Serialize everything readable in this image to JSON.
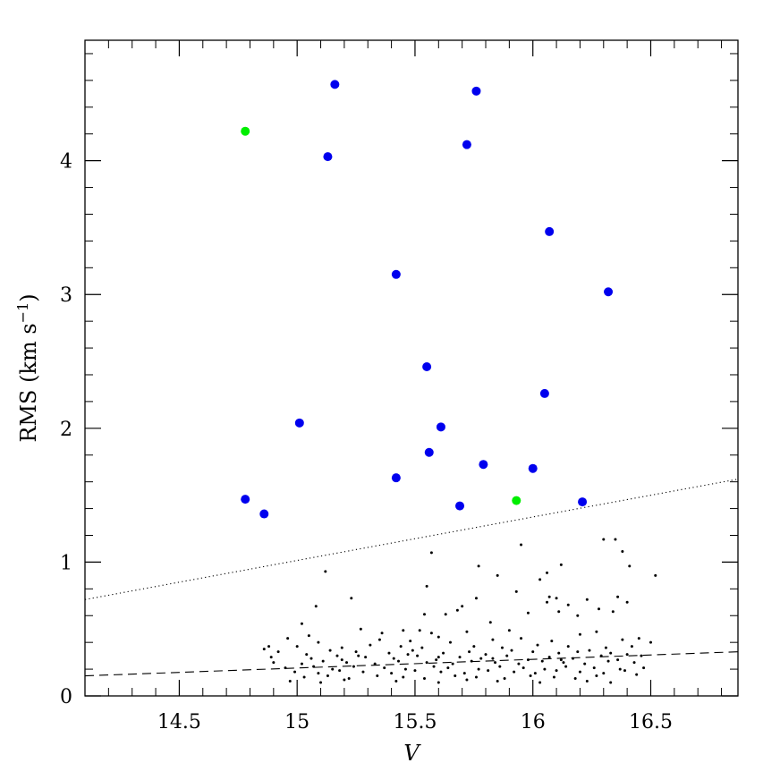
{
  "chart_data": {
    "type": "scatter",
    "xlabel": "V",
    "ylabel": "RMS (km s",
    "ylabel_sup": "−1",
    "ylabel_close": ")",
    "xlim": [
      14.1,
      16.87
    ],
    "ylim": [
      0,
      4.9
    ],
    "x_major_ticks": [
      14.5,
      15,
      15.5,
      16,
      16.5
    ],
    "x_tick_labels": [
      "14.5",
      "15",
      "15.5",
      "16",
      "16.5"
    ],
    "x_minor_step": 0.1,
    "y_major_ticks": [
      0,
      1,
      2,
      3,
      4
    ],
    "y_tick_labels": [
      "0",
      "1",
      "2",
      "3",
      "4"
    ],
    "y_minor_step": 0.2,
    "grid": false,
    "colors": {
      "blue": "#0000ee",
      "green": "#00ee00",
      "black": "#000000"
    },
    "series": [
      {
        "marker": "large-dot",
        "color": "#0000ee",
        "points": [
          [
            15.16,
            4.57
          ],
          [
            15.76,
            4.52
          ],
          [
            15.72,
            4.12
          ],
          [
            15.13,
            4.03
          ],
          [
            16.07,
            3.47
          ],
          [
            15.42,
            3.15
          ],
          [
            16.32,
            3.02
          ],
          [
            15.55,
            2.46
          ],
          [
            16.05,
            2.26
          ],
          [
            15.01,
            2.04
          ],
          [
            15.61,
            2.01
          ],
          [
            15.56,
            1.82
          ],
          [
            15.79,
            1.73
          ],
          [
            16.0,
            1.7
          ],
          [
            15.42,
            1.63
          ],
          [
            14.78,
            1.47
          ],
          [
            16.21,
            1.45
          ],
          [
            15.69,
            1.42
          ],
          [
            14.86,
            1.36
          ]
        ]
      },
      {
        "marker": "large-dot",
        "color": "#00ee00",
        "points": [
          [
            14.78,
            4.22
          ],
          [
            15.93,
            1.46
          ]
        ]
      },
      {
        "marker": "small-dot",
        "color": "#000000",
        "points": [
          [
            15.12,
            0.93
          ],
          [
            15.57,
            1.07
          ],
          [
            15.95,
            1.13
          ],
          [
            16.3,
            1.17
          ],
          [
            16.35,
            1.17
          ],
          [
            16.38,
            1.08
          ],
          [
            16.12,
            0.98
          ],
          [
            15.77,
            0.97
          ],
          [
            16.41,
            0.97
          ],
          [
            16.06,
            0.92
          ],
          [
            15.85,
            0.9
          ],
          [
            16.52,
            0.9
          ],
          [
            16.03,
            0.87
          ],
          [
            15.55,
            0.82
          ],
          [
            15.93,
            0.78
          ],
          [
            16.07,
            0.74
          ],
          [
            16.36,
            0.74
          ],
          [
            15.23,
            0.73
          ],
          [
            15.76,
            0.73
          ],
          [
            16.1,
            0.73
          ],
          [
            16.23,
            0.72
          ],
          [
            16.4,
            0.7
          ],
          [
            15.7,
            0.67
          ],
          [
            16.06,
            0.7
          ],
          [
            16.15,
            0.68
          ],
          [
            16.28,
            0.65
          ],
          [
            15.08,
            0.67
          ],
          [
            15.68,
            0.64
          ],
          [
            15.98,
            0.62
          ],
          [
            16.19,
            0.6
          ],
          [
            15.54,
            0.61
          ],
          [
            15.63,
            0.61
          ],
          [
            15.82,
            0.55
          ],
          [
            16.11,
            0.63
          ],
          [
            16.34,
            0.63
          ],
          [
            15.02,
            0.54
          ],
          [
            15.45,
            0.49
          ],
          [
            15.27,
            0.5
          ],
          [
            15.52,
            0.49
          ],
          [
            15.9,
            0.49
          ],
          [
            16.27,
            0.48
          ],
          [
            15.72,
            0.48
          ],
          [
            15.36,
            0.47
          ],
          [
            15.57,
            0.47
          ],
          [
            16.2,
            0.46
          ],
          [
            14.96,
            0.43
          ],
          [
            15.05,
            0.45
          ],
          [
            15.6,
            0.44
          ],
          [
            15.95,
            0.43
          ],
          [
            16.45,
            0.43
          ],
          [
            14.88,
            0.37
          ],
          [
            15.09,
            0.4
          ],
          [
            15.35,
            0.42
          ],
          [
            15.48,
            0.41
          ],
          [
            15.65,
            0.4
          ],
          [
            15.83,
            0.42
          ],
          [
            16.08,
            0.41
          ],
          [
            16.38,
            0.42
          ],
          [
            14.86,
            0.35
          ],
          [
            15.0,
            0.37
          ],
          [
            15.19,
            0.36
          ],
          [
            15.31,
            0.38
          ],
          [
            15.44,
            0.37
          ],
          [
            15.53,
            0.36
          ],
          [
            15.75,
            0.37
          ],
          [
            15.87,
            0.36
          ],
          [
            16.02,
            0.38
          ],
          [
            16.15,
            0.37
          ],
          [
            16.31,
            0.36
          ],
          [
            16.42,
            0.37
          ],
          [
            16.5,
            0.4
          ],
          [
            14.92,
            0.33
          ],
          [
            15.04,
            0.31
          ],
          [
            15.14,
            0.34
          ],
          [
            15.25,
            0.33
          ],
          [
            15.39,
            0.32
          ],
          [
            15.49,
            0.34
          ],
          [
            15.62,
            0.32
          ],
          [
            15.73,
            0.33
          ],
          [
            15.8,
            0.31
          ],
          [
            15.91,
            0.34
          ],
          [
            16.0,
            0.33
          ],
          [
            16.11,
            0.32
          ],
          [
            16.24,
            0.34
          ],
          [
            16.33,
            0.32
          ],
          [
            16.4,
            0.31
          ],
          [
            14.89,
            0.29
          ],
          [
            15.06,
            0.28
          ],
          [
            15.17,
            0.3
          ],
          [
            15.29,
            0.29
          ],
          [
            15.41,
            0.28
          ],
          [
            15.51,
            0.3
          ],
          [
            15.59,
            0.27
          ],
          [
            15.69,
            0.29
          ],
          [
            15.78,
            0.28
          ],
          [
            15.89,
            0.3
          ],
          [
            15.98,
            0.27
          ],
          [
            16.07,
            0.29
          ],
          [
            16.17,
            0.28
          ],
          [
            16.29,
            0.3
          ],
          [
            16.36,
            0.27
          ],
          [
            16.46,
            0.3
          ],
          [
            14.9,
            0.25
          ],
          [
            15.02,
            0.24
          ],
          [
            15.11,
            0.26
          ],
          [
            15.21,
            0.25
          ],
          [
            15.33,
            0.24
          ],
          [
            15.43,
            0.26
          ],
          [
            15.55,
            0.25
          ],
          [
            15.66,
            0.24
          ],
          [
            15.74,
            0.26
          ],
          [
            15.84,
            0.25
          ],
          [
            15.94,
            0.24
          ],
          [
            16.04,
            0.26
          ],
          [
            16.13,
            0.25
          ],
          [
            16.22,
            0.24
          ],
          [
            16.32,
            0.26
          ],
          [
            16.43,
            0.25
          ],
          [
            14.95,
            0.21
          ],
          [
            15.07,
            0.22
          ],
          [
            15.15,
            0.2
          ],
          [
            15.24,
            0.22
          ],
          [
            15.37,
            0.21
          ],
          [
            15.46,
            0.2
          ],
          [
            15.58,
            0.22
          ],
          [
            15.64,
            0.21
          ],
          [
            15.77,
            0.2
          ],
          [
            15.86,
            0.22
          ],
          [
            15.96,
            0.21
          ],
          [
            16.05,
            0.2
          ],
          [
            16.14,
            0.22
          ],
          [
            16.26,
            0.21
          ],
          [
            16.37,
            0.2
          ],
          [
            16.47,
            0.21
          ],
          [
            14.99,
            0.18
          ],
          [
            15.09,
            0.17
          ],
          [
            15.18,
            0.19
          ],
          [
            15.28,
            0.18
          ],
          [
            15.4,
            0.17
          ],
          [
            15.5,
            0.19
          ],
          [
            15.61,
            0.18
          ],
          [
            15.71,
            0.17
          ],
          [
            15.81,
            0.19
          ],
          [
            15.92,
            0.18
          ],
          [
            16.01,
            0.17
          ],
          [
            16.1,
            0.19
          ],
          [
            16.2,
            0.18
          ],
          [
            16.3,
            0.17
          ],
          [
            16.39,
            0.19
          ],
          [
            15.03,
            0.14
          ],
          [
            15.13,
            0.15
          ],
          [
            15.22,
            0.13
          ],
          [
            15.34,
            0.15
          ],
          [
            15.45,
            0.14
          ],
          [
            15.54,
            0.13
          ],
          [
            15.67,
            0.15
          ],
          [
            15.76,
            0.14
          ],
          [
            15.88,
            0.13
          ],
          [
            15.99,
            0.15
          ],
          [
            16.09,
            0.14
          ],
          [
            16.18,
            0.13
          ],
          [
            16.27,
            0.15
          ],
          [
            14.97,
            0.11
          ],
          [
            15.1,
            0.1
          ],
          [
            15.2,
            0.12
          ],
          [
            15.42,
            0.11
          ],
          [
            15.6,
            0.1
          ],
          [
            15.72,
            0.12
          ],
          [
            15.85,
            0.11
          ],
          [
            16.03,
            0.1
          ],
          [
            16.23,
            0.11
          ],
          [
            16.33,
            0.1
          ],
          [
            16.44,
            0.16
          ],
          [
            15.19,
            0.27
          ],
          [
            15.26,
            0.3
          ],
          [
            15.47,
            0.31
          ],
          [
            15.6,
            0.29
          ],
          [
            15.83,
            0.28
          ],
          [
            16.12,
            0.27
          ],
          [
            16.19,
            0.33
          ]
        ]
      }
    ],
    "lines": [
      {
        "style": "dotted",
        "x": [
          14.1,
          16.87
        ],
        "y": [
          0.72,
          1.62
        ]
      },
      {
        "style": "dashed",
        "x": [
          14.1,
          16.87
        ],
        "y": [
          0.15,
          0.33
        ]
      }
    ]
  }
}
